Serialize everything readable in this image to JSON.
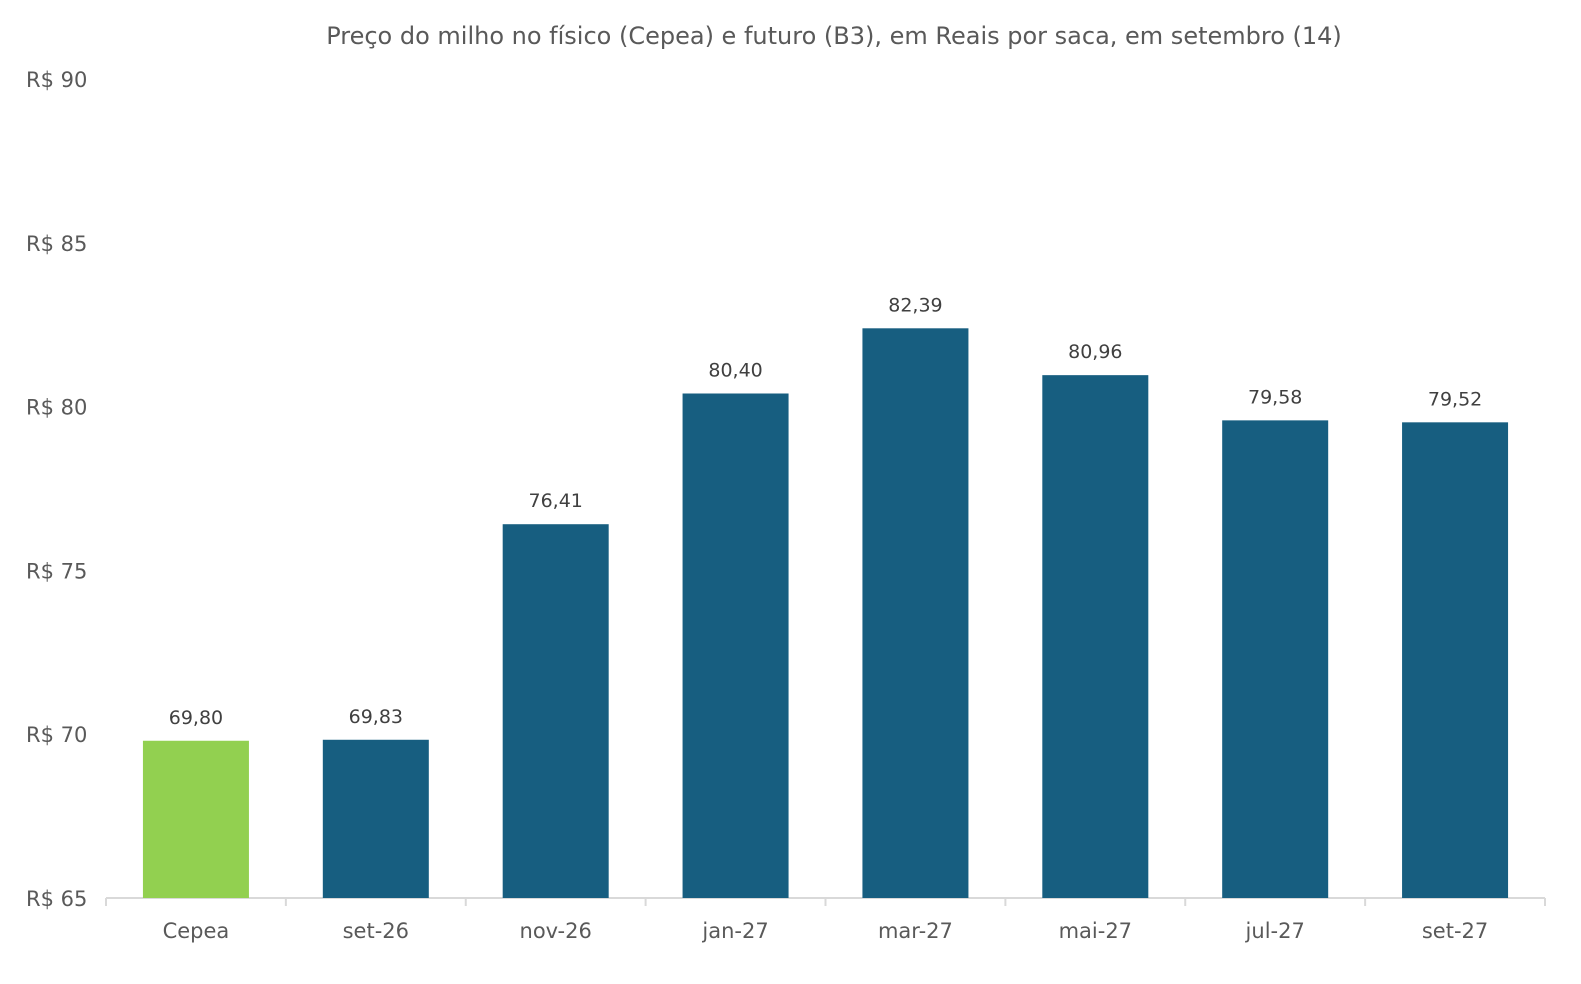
{
  "chart_data": {
    "type": "bar",
    "title": "Preço do milho no físico (Cepea) e futuro (B3), em Reais por saca, em setembro (14)",
    "xlabel": "",
    "ylabel": "",
    "categories": [
      "Cepea",
      "set-26",
      "nov-26",
      "jan-27",
      "mar-27",
      "mai-27",
      "jul-27",
      "set-27"
    ],
    "values": [
      69.8,
      69.83,
      76.41,
      80.4,
      82.39,
      80.96,
      79.58,
      79.52
    ],
    "value_labels": [
      "69,80",
      "69,83",
      "76,41",
      "80,40",
      "82,39",
      "80,96",
      "79,58",
      "79,52"
    ],
    "bar_colors": [
      "#92d050",
      "#175e80",
      "#175e80",
      "#175e80",
      "#175e80",
      "#175e80",
      "#175e80",
      "#175e80"
    ],
    "ylim": [
      65,
      90
    ],
    "yticks": [
      65,
      70,
      75,
      80,
      85,
      90
    ],
    "ytick_labels": [
      "R$ 65",
      "R$ 70",
      "R$ 75",
      "R$ 80",
      "R$ 85",
      "R$ 90"
    ],
    "grid": false,
    "legend": "none"
  },
  "colors": {
    "axis": "#d9d9d9",
    "text": "#595959",
    "future_bar": "#175e80",
    "spot_bar": "#92d050"
  }
}
